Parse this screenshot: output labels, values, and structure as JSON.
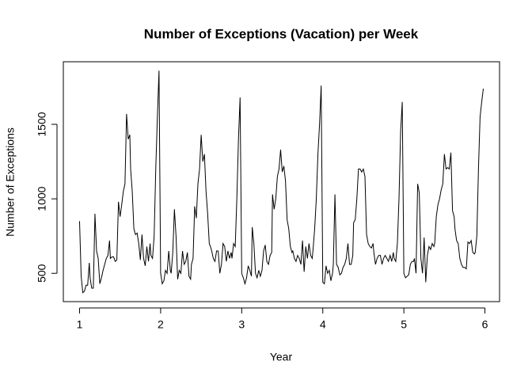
{
  "chart_data": {
    "type": "line",
    "title": "Number of Exceptions (Vacation) per Week",
    "x_label": "Year",
    "y_label": "Number of Exceptions",
    "color": "#000000",
    "x": [
      1,
      1.02,
      1.04,
      1.06,
      1.08,
      1.1,
      1.12,
      1.13,
      1.15,
      1.17,
      1.19,
      1.21,
      1.23,
      1.25,
      1.27,
      1.29,
      1.31,
      1.33,
      1.35,
      1.37,
      1.38,
      1.4,
      1.42,
      1.44,
      1.46,
      1.48,
      1.5,
      1.52,
      1.54,
      1.56,
      1.58,
      1.6,
      1.62,
      1.63,
      1.65,
      1.67,
      1.69,
      1.71,
      1.73,
      1.75,
      1.77,
      1.79,
      1.81,
      1.83,
      1.85,
      1.87,
      1.88,
      1.9,
      1.92,
      1.94,
      1.96,
      1.98,
      2,
      2.02,
      2.04,
      2.06,
      2.08,
      2.1,
      2.12,
      2.13,
      2.15,
      2.17,
      2.19,
      2.21,
      2.23,
      2.25,
      2.27,
      2.29,
      2.31,
      2.33,
      2.35,
      2.37,
      2.38,
      2.4,
      2.42,
      2.44,
      2.46,
      2.48,
      2.5,
      2.52,
      2.54,
      2.56,
      2.58,
      2.6,
      2.62,
      2.63,
      2.65,
      2.67,
      2.69,
      2.71,
      2.73,
      2.75,
      2.77,
      2.79,
      2.81,
      2.83,
      2.85,
      2.87,
      2.88,
      2.9,
      2.92,
      2.94,
      2.96,
      2.98,
      3,
      3.02,
      3.04,
      3.06,
      3.08,
      3.1,
      3.12,
      3.13,
      3.15,
      3.17,
      3.19,
      3.21,
      3.23,
      3.25,
      3.27,
      3.29,
      3.31,
      3.33,
      3.35,
      3.37,
      3.38,
      3.4,
      3.42,
      3.44,
      3.46,
      3.48,
      3.5,
      3.52,
      3.54,
      3.56,
      3.58,
      3.6,
      3.62,
      3.63,
      3.65,
      3.67,
      3.69,
      3.71,
      3.73,
      3.75,
      3.77,
      3.79,
      3.81,
      3.83,
      3.85,
      3.87,
      3.88,
      3.9,
      3.92,
      3.94,
      3.96,
      3.98,
      4,
      4.02,
      4.04,
      4.06,
      4.08,
      4.1,
      4.12,
      4.13,
      4.15,
      4.17,
      4.19,
      4.21,
      4.23,
      4.25,
      4.27,
      4.29,
      4.31,
      4.33,
      4.35,
      4.37,
      4.38,
      4.4,
      4.42,
      4.44,
      4.46,
      4.48,
      4.5,
      4.52,
      4.54,
      4.56,
      4.58,
      4.6,
      4.62,
      4.63,
      4.65,
      4.67,
      4.69,
      4.71,
      4.73,
      4.75,
      4.77,
      4.79,
      4.81,
      4.83,
      4.85,
      4.87,
      4.88,
      4.9,
      4.92,
      4.94,
      4.96,
      4.98,
      5,
      5.02,
      5.04,
      5.06,
      5.08,
      5.1,
      5.12,
      5.13,
      5.15,
      5.17,
      5.19,
      5.21,
      5.23,
      5.25,
      5.27,
      5.29,
      5.31,
      5.33,
      5.35,
      5.37,
      5.38,
      5.4,
      5.42,
      5.44,
      5.46,
      5.48,
      5.5,
      5.52,
      5.54,
      5.56,
      5.58,
      5.6,
      5.62,
      5.63,
      5.65,
      5.67,
      5.69,
      5.71,
      5.73,
      5.75,
      5.77,
      5.79,
      5.81,
      5.83,
      5.85,
      5.87,
      5.88,
      5.9,
      5.92,
      5.94,
      5.96,
      5.98
    ],
    "values": [
      850,
      480,
      370,
      380,
      420,
      420,
      570,
      470,
      400,
      400,
      900,
      650,
      600,
      430,
      470,
      520,
      560,
      600,
      620,
      720,
      600,
      610,
      610,
      580,
      590,
      980,
      880,
      960,
      1050,
      1100,
      1570,
      1400,
      1430,
      1200,
      1050,
      800,
      760,
      770,
      700,
      590,
      760,
      600,
      550,
      680,
      580,
      700,
      620,
      600,
      750,
      1200,
      1550,
      1860,
      500,
      430,
      450,
      520,
      500,
      650,
      520,
      500,
      640,
      930,
      750,
      460,
      520,
      500,
      650,
      560,
      580,
      640,
      480,
      460,
      560,
      600,
      950,
      870,
      1100,
      1200,
      1430,
      1250,
      1300,
      1050,
      900,
      700,
      670,
      650,
      600,
      580,
      650,
      650,
      500,
      560,
      700,
      680,
      580,
      650,
      600,
      640,
      600,
      700,
      680,
      1000,
      1400,
      1680,
      500,
      470,
      430,
      470,
      550,
      520,
      480,
      810,
      700,
      500,
      470,
      520,
      480,
      520,
      650,
      690,
      580,
      560,
      620,
      640,
      1030,
      930,
      1000,
      1150,
      1200,
      1330,
      1180,
      1220,
      1120,
      860,
      800,
      680,
      640,
      650,
      600,
      580,
      620,
      600,
      560,
      720,
      510,
      680,
      600,
      700,
      620,
      600,
      660,
      800,
      1000,
      1300,
      1500,
      1760,
      440,
      430,
      550,
      500,
      520,
      450,
      500,
      560,
      1030,
      560,
      540,
      490,
      500,
      540,
      560,
      600,
      700,
      560,
      560,
      620,
      840,
      860,
      1000,
      1200,
      1200,
      1180,
      1200,
      1150,
      760,
      700,
      680,
      670,
      700,
      640,
      560,
      600,
      620,
      620,
      560,
      600,
      620,
      600,
      580,
      620,
      580,
      640,
      600,
      580,
      700,
      1000,
      1450,
      1650,
      500,
      470,
      480,
      490,
      560,
      580,
      580,
      600,
      500,
      1100,
      1040,
      600,
      500,
      740,
      440,
      620,
      680,
      660,
      700,
      680,
      700,
      880,
      960,
      1000,
      1060,
      1100,
      1300,
      1200,
      1210,
      1200,
      1310,
      920,
      880,
      800,
      720,
      700,
      600,
      560,
      540,
      540,
      530,
      710,
      700,
      720,
      640,
      630,
      640,
      750,
      1200,
      1550,
      1650,
      1740
    ],
    "xlim": [
      0.8,
      6.18
    ],
    "ylim": [
      310,
      1920
    ],
    "xticks": [
      1,
      2,
      3,
      4,
      5,
      6
    ],
    "yticks": [
      500,
      1000,
      1500
    ]
  }
}
